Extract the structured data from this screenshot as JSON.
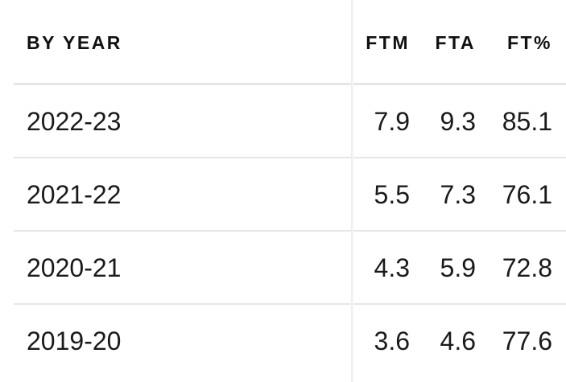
{
  "table": {
    "headers": {
      "year": "BY YEAR",
      "ftm": "FTM",
      "fta": "FTA",
      "ft_pct": "FT%"
    },
    "rows": [
      {
        "year": "2022-23",
        "ftm": "7.9",
        "fta": "9.3",
        "ft_pct": "85.1"
      },
      {
        "year": "2021-22",
        "ftm": "5.5",
        "fta": "7.3",
        "ft_pct": "76.1"
      },
      {
        "year": "2020-21",
        "ftm": "4.3",
        "fta": "5.9",
        "ft_pct": "72.8"
      },
      {
        "year": "2019-20",
        "ftm": "3.6",
        "fta": "4.6",
        "ft_pct": "77.6"
      }
    ]
  }
}
